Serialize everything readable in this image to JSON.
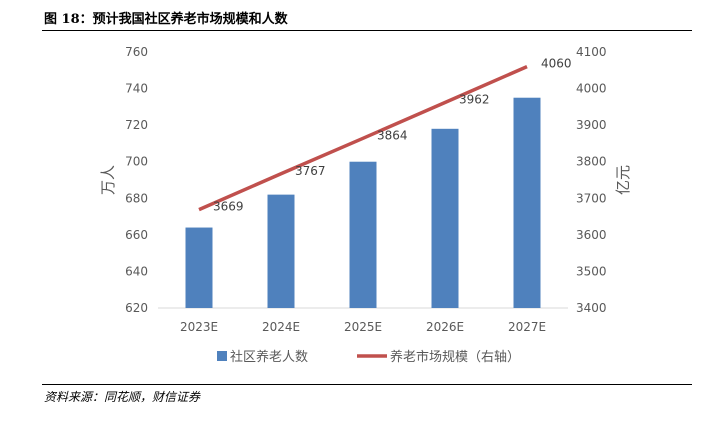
{
  "figure": {
    "title": "图 18：预计我国社区养老市场规模和人数",
    "source": "资料来源：同花顺，财信证券"
  },
  "chart_data": {
    "type": "bar",
    "categories": [
      "2023E",
      "2024E",
      "2025E",
      "2026E",
      "2027E"
    ],
    "series": [
      {
        "name": "社区养老人数",
        "type": "bar",
        "axis": "left",
        "color": "#4f81bd",
        "values": [
          664,
          682,
          700,
          718,
          735
        ]
      },
      {
        "name": "养老市场规模（右轴）",
        "type": "line",
        "axis": "right",
        "color": "#c0504d",
        "values": [
          3669,
          3767,
          3864,
          3962,
          4060
        ],
        "data_labels": [
          "3669",
          "3767",
          "3864",
          "3962",
          "4060"
        ]
      }
    ],
    "ylabel": "万人",
    "y2label": "亿元",
    "ylim": [
      620,
      760
    ],
    "yticks": [
      "620",
      "640",
      "660",
      "680",
      "700",
      "720",
      "740",
      "760"
    ],
    "y2lim": [
      3400,
      4100
    ],
    "y2ticks": [
      "3400",
      "3500",
      "3600",
      "3700",
      "3800",
      "3900",
      "4000",
      "4100"
    ],
    "grid": false,
    "legend_position": "bottom"
  }
}
